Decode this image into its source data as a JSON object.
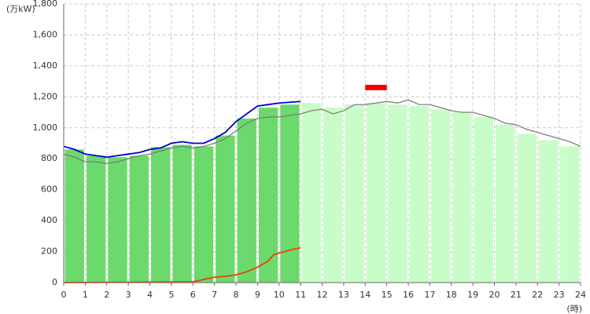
{
  "chart_data": {
    "type": "bar",
    "ylabel": "(万kW)",
    "xlabel": "(時)",
    "xlim": [
      0,
      24
    ],
    "xticks": [
      0,
      1,
      2,
      3,
      4,
      5,
      6,
      7,
      8,
      9,
      10,
      11,
      12,
      13,
      14,
      15,
      16,
      17,
      18,
      19,
      20,
      21,
      22,
      23,
      24
    ],
    "ylim": [
      0,
      1800
    ],
    "yticks": [
      0,
      200,
      400,
      600,
      800,
      {
        "value": 1000,
        "label": "1,000"
      },
      {
        "value": 1200,
        "label": "1,200"
      },
      {
        "value": 1400,
        "label": "1,400"
      },
      {
        "value": 1600,
        "label": "1,600"
      },
      {
        "value": 1800,
        "label": "1,800"
      }
    ],
    "grid": true,
    "bars": [
      {
        "color": "#6bd96b",
        "values": [
          860,
          820,
          810,
          820,
          875,
          890,
          880,
          950,
          1060,
          1130,
          1150,
          null,
          null,
          null,
          null,
          null,
          null,
          null,
          null,
          null,
          null,
          null,
          null,
          null
        ]
      },
      {
        "color": "#c8fcc8",
        "values": [
          null,
          null,
          null,
          null,
          null,
          null,
          null,
          null,
          null,
          null,
          null,
          1160,
          1130,
          1150,
          1160,
          1150,
          1140,
          1120,
          1100,
          1070,
          1020,
          960,
          920,
          880
        ]
      }
    ],
    "lines": [
      {
        "color": "#777777",
        "x": [
          0,
          0.5,
          1,
          1.5,
          2,
          2.5,
          3,
          3.5,
          4,
          4.5,
          5,
          5.5,
          6,
          6.5,
          7,
          7.5,
          8,
          8.5,
          9,
          9.5,
          10,
          10.5,
          11,
          11.5,
          12,
          12.5,
          13,
          13.5,
          14,
          14.5,
          15,
          15.5,
          16,
          16.5,
          17,
          17.5,
          18,
          18.5,
          19,
          19.5,
          20,
          20.5,
          21,
          21.5,
          22,
          22.5,
          23,
          23.5,
          24
        ],
        "values": [
          830,
          810,
          780,
          780,
          770,
          780,
          800,
          820,
          830,
          850,
          870,
          880,
          870,
          880,
          900,
          930,
          980,
          1030,
          1060,
          1070,
          1070,
          1080,
          1090,
          1110,
          1120,
          1090,
          1110,
          1150,
          1150,
          1160,
          1170,
          1160,
          1180,
          1150,
          1150,
          1130,
          1110,
          1100,
          1100,
          1080,
          1060,
          1030,
          1020,
          990,
          970,
          950,
          930,
          910,
          880
        ]
      },
      {
        "color": "#0000cc",
        "x": [
          0,
          0.5,
          1,
          1.5,
          2,
          2.5,
          3,
          3.5,
          4,
          4.5,
          5,
          5.5,
          6,
          6.5,
          7,
          7.5,
          8,
          8.5,
          9,
          9.5,
          10,
          10.5,
          11
        ],
        "values": [
          880,
          860,
          830,
          820,
          810,
          820,
          830,
          840,
          860,
          870,
          900,
          910,
          900,
          900,
          930,
          970,
          1040,
          1090,
          1140,
          1150,
          1160,
          1165,
          1170
        ]
      },
      {
        "color": "#ee4400",
        "x": [
          0,
          6,
          6.5,
          7,
          7.5,
          8,
          8.5,
          9,
          9.5,
          9.75,
          10,
          10.5,
          11
        ],
        "values": [
          0,
          5,
          20,
          35,
          40,
          50,
          70,
          100,
          140,
          180,
          190,
          210,
          225
        ]
      }
    ],
    "peak": {
      "color": "#ee0000",
      "x": [
        14,
        15
      ],
      "value": 1260
    }
  }
}
